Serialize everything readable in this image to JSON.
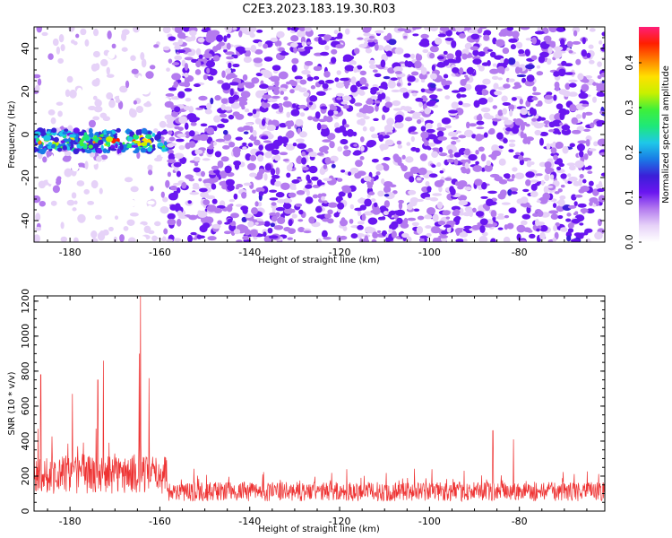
{
  "title": "C2E3.2023.183.19.30.R03",
  "chart_data": [
    {
      "type": "heatmap",
      "xlabel": "Height of straight line (km)",
      "ylabel": "Frequency (Hz)",
      "xlim": [
        -188,
        -61
      ],
      "ylim": [
        -50,
        50
      ],
      "x_ticks": [
        -180,
        -160,
        -140,
        -120,
        -100,
        -80
      ],
      "x_tick_labels": [
        "-180",
        "-160",
        "-140",
        "-120",
        "-100",
        "-80"
      ],
      "y_ticks": [
        -40,
        -20,
        0,
        20,
        40
      ],
      "y_tick_labels": [
        "-40",
        "-20",
        "0",
        "20",
        "40"
      ],
      "colorbar": {
        "label": "Normalized spectral amplitude",
        "range": [
          0.0,
          0.48
        ],
        "ticks": [
          0.0,
          0.1,
          0.2,
          0.3,
          0.4
        ],
        "tick_labels": [
          "0.0",
          "0.1",
          "0.2",
          "0.3",
          "0.4"
        ],
        "colormap": [
          "#ffffff",
          "#e6d2f8",
          "#b47bef",
          "#6a16f0",
          "#3b1fd8",
          "#1a7ae6",
          "#1ec8e8",
          "#1ee87a",
          "#3ef03a",
          "#c8f000",
          "#ffe000",
          "#ff8000",
          "#ff1e00",
          "#ff1e78"
        ]
      },
      "features": [
        {
          "description": "strong signal band near 0 Hz",
          "x_range": [
            -188,
            -158
          ],
          "y_center": -3,
          "peak_amplitude": 0.46
        },
        {
          "description": "weak sparse noise",
          "x_range": [
            -188,
            -158
          ],
          "amplitude": 0.05
        },
        {
          "description": "dense moderate noise",
          "x_range": [
            -158,
            -61
          ],
          "amplitude": 0.1
        }
      ],
      "grid": false
    },
    {
      "type": "line",
      "xlabel": "Height of straight line (km)",
      "ylabel": "SNR (10 * v/v)",
      "xlim": [
        -188,
        -61
      ],
      "ylim": [
        0,
        1230
      ],
      "x_ticks": [
        -180,
        -160,
        -140,
        -120,
        -100,
        -80
      ],
      "x_tick_labels": [
        "-180",
        "-160",
        "-140",
        "-120",
        "-100",
        "-80"
      ],
      "y_ticks": [
        0,
        200,
        400,
        600,
        800,
        1000,
        1200
      ],
      "y_tick_labels": [
        "0",
        "200",
        "400",
        "600",
        "800",
        "1000",
        "1200"
      ],
      "series_color": "#ee3333",
      "peaks": [
        {
          "x": -186.5,
          "y": 780
        },
        {
          "x": -179.5,
          "y": 670
        },
        {
          "x": -173.8,
          "y": 750
        },
        {
          "x": -172.6,
          "y": 860
        },
        {
          "x": -164.6,
          "y": 900
        },
        {
          "x": -164.3,
          "y": 1230
        },
        {
          "x": -162.4,
          "y": 760
        },
        {
          "x": -85.9,
          "y": 460
        },
        {
          "x": -81.3,
          "y": 410
        }
      ],
      "segments": [
        {
          "x_range": [
            -188,
            -158
          ],
          "baseline": 220,
          "spread": 200
        },
        {
          "x_range": [
            -158,
            -61
          ],
          "baseline": 125,
          "spread": 100
        }
      ],
      "grid": false
    }
  ]
}
